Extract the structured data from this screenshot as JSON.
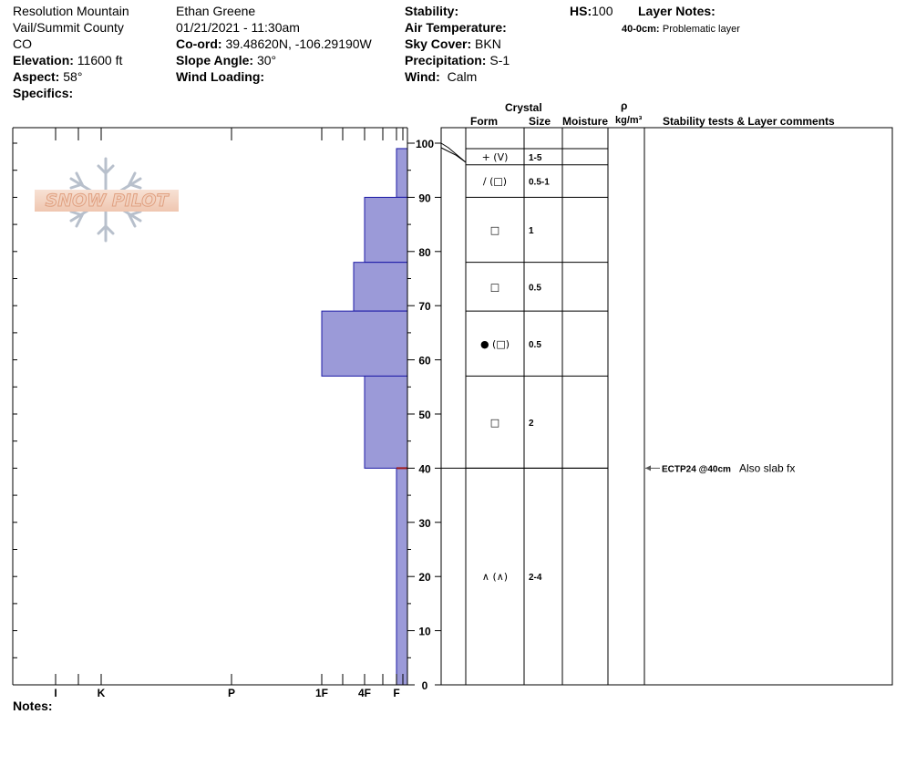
{
  "header": {
    "location": "Resolution Mountain",
    "region": "Vail/Summit County",
    "state": "CO",
    "elevation_label": "Elevation:",
    "elevation_value": "11600 ft",
    "aspect_label": "Aspect:",
    "aspect_value": "58°",
    "specifics_label": "Specifics:",
    "observer": "Ethan Greene",
    "datetime": "01/21/2021 - 11:30am",
    "coord_label": "Co-ord:",
    "coord_value": "39.48620N, -106.29190W",
    "slope_label": "Slope Angle:",
    "slope_value": "30°",
    "wind_loading_label": "Wind Loading:",
    "stability_label": "Stability:",
    "air_temp_label": "Air Temperature:",
    "sky_label": "Sky Cover:",
    "sky_value": "BKN",
    "precip_label": "Precipitation:",
    "precip_value": "S-1",
    "wind_label": "Wind:",
    "wind_value": "Calm",
    "hs_label": "HS:",
    "hs_value": "100",
    "layer_notes_label": "Layer Notes:",
    "layer_note_range": "40-0cm:",
    "layer_note_text": "Problematic layer"
  },
  "columns": {
    "crystal": "Crystal",
    "form": "Form",
    "size": "Size",
    "moisture": "Moisture",
    "rho": "ρ",
    "density_unit": "kg/m³",
    "stability": "Stability tests & Layer comments"
  },
  "logo_text": "SNOW PILOT",
  "notes_label": "Notes:",
  "hardness_ticks": [
    {
      "label": "I",
      "level": 1
    },
    {
      "label": "K",
      "level": 2
    },
    {
      "label": "P",
      "level": 3
    },
    {
      "label": "1F",
      "level": 4
    },
    {
      "label": "4F",
      "level": 5
    },
    {
      "label": "F",
      "level": 6
    }
  ],
  "depth_ticks": [
    "100",
    "90",
    "80",
    "70",
    "60",
    "50",
    "40",
    "30",
    "20",
    "10",
    "0"
  ],
  "chart_data": {
    "type": "snow-profile",
    "y_axis": {
      "min": 0,
      "max": 100,
      "unit": "cm",
      "major_step": 10,
      "minor_step": 5
    },
    "hardness_scale": [
      "I",
      "K",
      "P",
      "1F",
      "4F",
      "F"
    ],
    "hardness_profile": [
      {
        "top": 99,
        "bottom": 90,
        "hardness": "F"
      },
      {
        "top": 90,
        "bottom": 78,
        "hardness": "4F"
      },
      {
        "top": 78,
        "bottom": 69,
        "hardness": "4F-"
      },
      {
        "top": 69,
        "bottom": 57,
        "hardness": "1F"
      },
      {
        "top": 57,
        "bottom": 40,
        "hardness": "4F"
      },
      {
        "top": 40,
        "bottom": 0,
        "hardness": "F"
      }
    ],
    "layers": [
      {
        "top": 99,
        "bottom": 96,
        "form": "+ (V)",
        "size": "1-5"
      },
      {
        "top": 96,
        "bottom": 90,
        "form": "/ (□)",
        "size": "0.5-1"
      },
      {
        "top": 90,
        "bottom": 78,
        "form": "□",
        "size": "1"
      },
      {
        "top": 78,
        "bottom": 69,
        "form": "□",
        "size": "0.5"
      },
      {
        "top": 69,
        "bottom": 57,
        "form": "● (□)",
        "size": "0.5"
      },
      {
        "top": 57,
        "bottom": 40,
        "form": "□",
        "size": "2"
      },
      {
        "top": 40,
        "bottom": 0,
        "form": "∧ (∧)",
        "size": "2-4"
      }
    ],
    "stability_tests": [
      {
        "depth": 40,
        "test": "ECTP24 @40cm",
        "comment": "Also slab fx"
      }
    ],
    "colors": {
      "profile_fill": "#9b9ad8",
      "profile_stroke": "#1c1aa6",
      "weak_layer": "#a01818"
    }
  }
}
